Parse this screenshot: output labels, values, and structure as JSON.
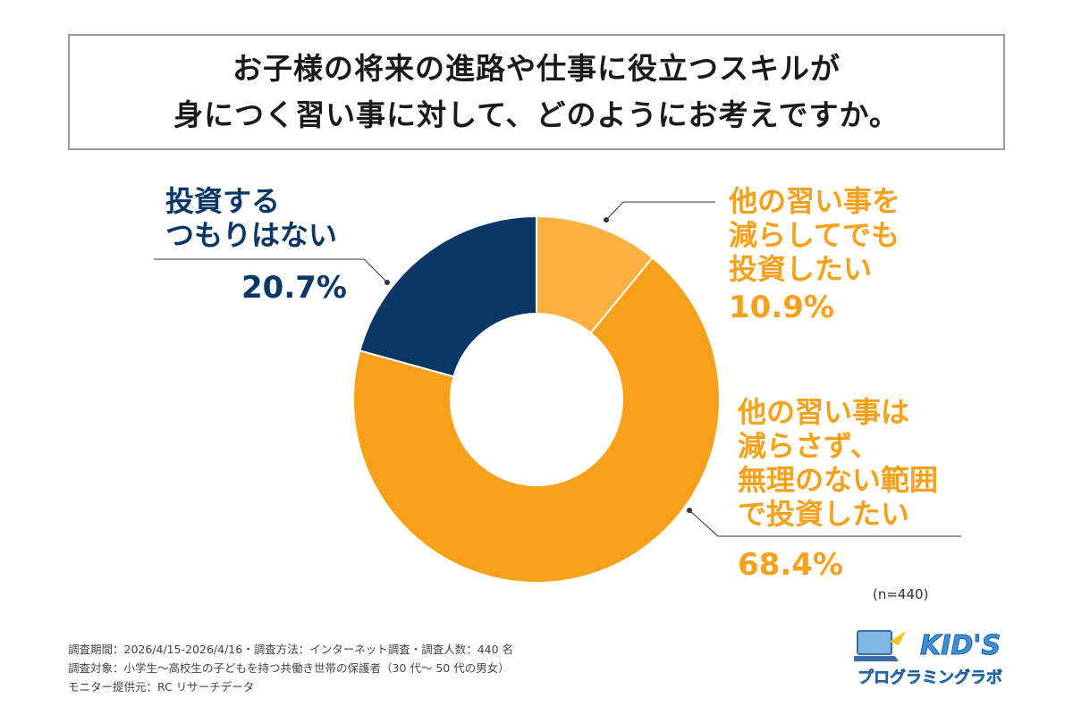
{
  "title": {
    "line1": "お子様の将来の進路や仕事に役立つスキルが",
    "line2": "身につく習い事に対して、どのようにお考えですか。"
  },
  "chart_data": {
    "type": "pie",
    "donut": true,
    "categories": [
      "他の習い事を減らしてでも投資したい",
      "他の習い事は減らさず、無理のない範囲で投資したい",
      "投資するつもりはない"
    ],
    "values": [
      10.9,
      68.4,
      20.7
    ],
    "value_labels": [
      "10.9%",
      "68.4%",
      "20.7%"
    ],
    "label_lines": [
      [
        "他の習い事を",
        "減らしてでも",
        "投資したい"
      ],
      [
        "他の習い事は",
        "減らさず、",
        "無理のない範囲",
        "で投資したい"
      ],
      [
        "投資する",
        "つもりはない"
      ]
    ],
    "colors": [
      "#fbb040",
      "#f7a11a",
      "#0b3766"
    ]
  },
  "sample_size": "(n=440)",
  "footer": {
    "line1": "調査期間：2026/4/15-2026/4/16・調査方法：インターネット調査・調査人数：440 名",
    "line2": "調査対象：小学生～高校生の子どもを持つ共働き世帯の保護者（30 代～ 50 代の男女）",
    "line3": "モニター提供元：RC リサーチデータ"
  },
  "logo": {
    "text": "KID'S",
    "subtext": "プログラミングラボ"
  }
}
